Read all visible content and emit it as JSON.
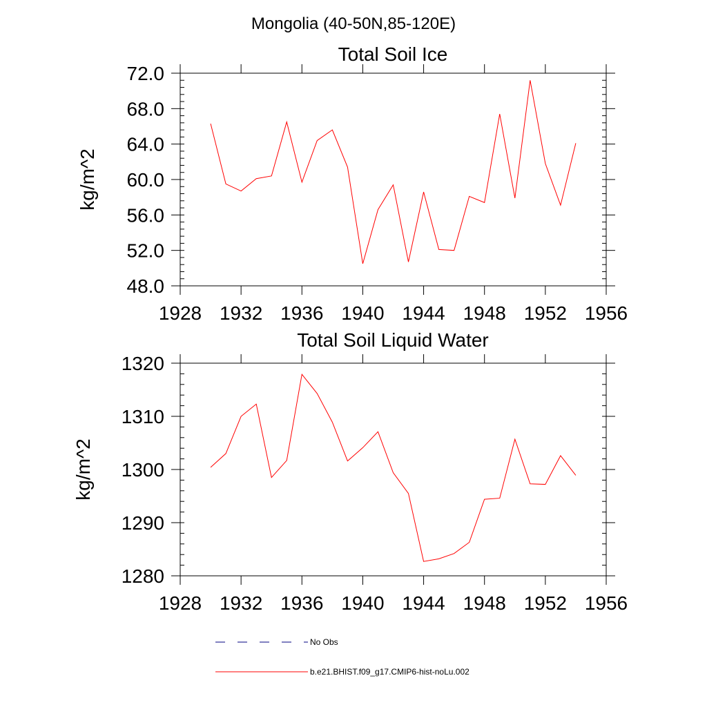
{
  "suptitle": "Mongolia (40-50N,85-120E)",
  "chart_data": [
    {
      "type": "line",
      "title": "Total Soil Ice",
      "xlabel": "",
      "ylabel": "kg/m^2",
      "xlim": [
        1928,
        1956
      ],
      "ylim": [
        48,
        72
      ],
      "xticks": [
        1928,
        1932,
        1936,
        1940,
        1944,
        1948,
        1952,
        1956
      ],
      "xtick_labels": [
        "1928",
        "1932",
        "1936",
        "1940",
        "1944",
        "1948",
        "1952",
        "1956"
      ],
      "yticks": [
        48,
        52,
        56,
        60,
        64,
        68,
        72
      ],
      "ytick_labels": [
        "48.0",
        "52.0",
        "56.0",
        "60.0",
        "64.0",
        "68.0",
        "72.0"
      ],
      "x": [
        1930,
        1931,
        1932,
        1933,
        1934,
        1935,
        1936,
        1937,
        1938,
        1939,
        1940,
        1941,
        1942,
        1943,
        1944,
        1945,
        1946,
        1947,
        1948,
        1949,
        1950,
        1951,
        1952,
        1953,
        1954
      ],
      "series": [
        {
          "name": "b.e21.BHIST.f09_g17.CMIP6-hist-noLu.002",
          "color": "#ff0000",
          "values": [
            66.3,
            59.5,
            58.7,
            60.1,
            60.4,
            66.5,
            59.7,
            64.4,
            65.6,
            61.4,
            50.5,
            56.6,
            59.4,
            50.7,
            58.6,
            52.1,
            52.0,
            58.1,
            57.4,
            67.4,
            57.9,
            71.2,
            61.8,
            57.1,
            64.1
          ]
        }
      ],
      "grid": false
    },
    {
      "type": "line",
      "title": "Total Soil Liquid Water",
      "xlabel": "",
      "ylabel": "kg/m^2",
      "xlim": [
        1928,
        1956
      ],
      "ylim": [
        1280,
        1320
      ],
      "xticks": [
        1928,
        1932,
        1936,
        1940,
        1944,
        1948,
        1952,
        1956
      ],
      "xtick_labels": [
        "1928",
        "1932",
        "1936",
        "1940",
        "1944",
        "1948",
        "1952",
        "1956"
      ],
      "yticks": [
        1280,
        1290,
        1300,
        1310,
        1320
      ],
      "ytick_labels": [
        "1280",
        "1290",
        "1300",
        "1310",
        "1320"
      ],
      "x": [
        1930,
        1931,
        1932,
        1933,
        1934,
        1935,
        1936,
        1937,
        1938,
        1939,
        1940,
        1941,
        1942,
        1943,
        1944,
        1945,
        1946,
        1947,
        1948,
        1949,
        1950,
        1951,
        1952,
        1953,
        1954
      ],
      "series": [
        {
          "name": "b.e21.BHIST.f09_g17.CMIP6-hist-noLu.002",
          "color": "#ff0000",
          "values": [
            1300.4,
            1303.0,
            1310.0,
            1312.3,
            1298.5,
            1301.7,
            1317.9,
            1314.3,
            1308.9,
            1301.6,
            1304.1,
            1307.1,
            1299.4,
            1295.5,
            1282.7,
            1283.2,
            1284.2,
            1286.3,
            1294.4,
            1294.6,
            1305.7,
            1297.3,
            1297.2,
            1302.6,
            1298.9
          ]
        }
      ],
      "grid": false
    }
  ],
  "legend": {
    "placement": "bottom",
    "entries": [
      {
        "label": "No Obs",
        "color": "#000080",
        "style": "dashed"
      },
      {
        "label": "b.e21.BHIST.f09_g17.CMIP6-hist-noLu.002",
        "color": "#ff0000",
        "style": "solid"
      }
    ]
  }
}
